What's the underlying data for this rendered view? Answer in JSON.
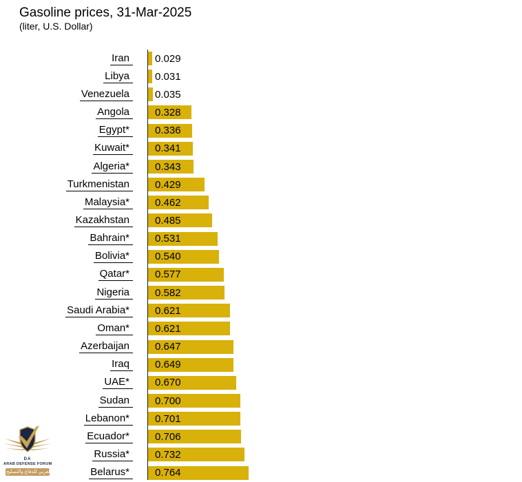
{
  "header": {
    "title": "Gasoline prices, 31-Mar-2025",
    "subtitle": "(liter, U.S. Dollar)"
  },
  "chart_data": {
    "type": "bar",
    "orientation": "horizontal",
    "title": "Gasoline prices, 31-Mar-2025",
    "subtitle": "(liter, U.S. Dollar)",
    "xlabel": "",
    "ylabel": "",
    "xlim": [
      0,
      0.8
    ],
    "grid": false,
    "legend": false,
    "bar_color": "#D8B10A",
    "axis_line_color": "#1a1a1a",
    "value_decimals": 3,
    "categories": [
      "Iran",
      "Libya",
      "Venezuela",
      "Angola",
      "Egypt*",
      "Kuwait*",
      "Algeria*",
      "Turkmenistan",
      "Malaysia*",
      "Kazakhstan",
      "Bahrain*",
      "Bolivia*",
      "Qatar*",
      "Nigeria",
      "Saudi Arabia*",
      "Oman*",
      "Azerbaijan",
      "Iraq",
      "UAE*",
      "Sudan",
      "Lebanon*",
      "Ecuador*",
      "Russia*",
      "Belarus*"
    ],
    "values": [
      0.029,
      0.031,
      0.035,
      0.328,
      0.336,
      0.341,
      0.343,
      0.429,
      0.462,
      0.485,
      0.531,
      0.54,
      0.577,
      0.582,
      0.621,
      0.621,
      0.647,
      0.649,
      0.67,
      0.7,
      0.701,
      0.706,
      0.732,
      0.764
    ]
  },
  "watermark": {
    "monogram": "DA",
    "org_name": "ARAB DEFENSE FORUM",
    "arabic_text": "المنتدى العربي للدفاع والتسليح",
    "colors": {
      "navy": "#1B2742",
      "gold": "#BF9B55",
      "gold_light": "#C9A455",
      "tan_box": "#C49E63"
    }
  }
}
